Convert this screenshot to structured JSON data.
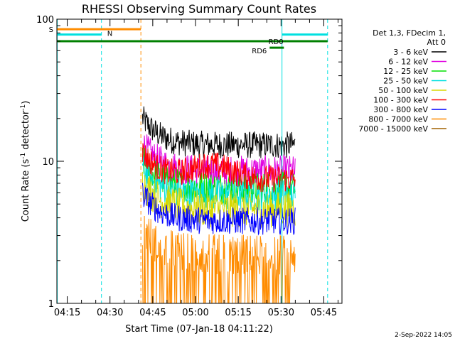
{
  "chart_data": {
    "type": "line",
    "title": "RHESSI Observing Summary Count Rates",
    "xlabel": "Start Time (07-Jan-18 04:11:22)",
    "ylabel": "Count Rate (s",
    "ylabel_sup": "-1",
    "ylabel_tail": " detector",
    "ylabel_end": ")",
    "y_scale": "log",
    "ylim": [
      1,
      100
    ],
    "xlim": [
      "04:11:22",
      "05:51:22"
    ],
    "y_ticks": [
      "1",
      "10",
      "100"
    ],
    "x_ticks": [
      "04:15",
      "04:30",
      "04:45",
      "05:00",
      "05:15",
      "05:30",
      "05:45"
    ],
    "legend": {
      "placement": "right",
      "header_line1": "Det 1,3, FDecim 1,",
      "header_line2": "Att 0",
      "entries": [
        {
          "label": "3 - 6 keV",
          "color": "#000000"
        },
        {
          "label": "6 - 12 keV",
          "color": "#e000e0"
        },
        {
          "label": "12 - 25 keV",
          "color": "#00e000"
        },
        {
          "label": "25 - 50 keV",
          "color": "#00e0e0"
        },
        {
          "label": "50 - 100 keV",
          "color": "#d8d800"
        },
        {
          "label": "100 - 300 keV",
          "color": "#ff0000"
        },
        {
          "label": "300 - 800 keV",
          "color": "#0000ff"
        },
        {
          "label": "800 - 7000 keV",
          "color": "#ff8c00"
        },
        {
          "label": "7000 - 15000 keV",
          "color": "#a06000"
        }
      ]
    },
    "series": [
      {
        "name": "3 - 6 keV",
        "color": "#000000",
        "x_start": "04:41:22",
        "x_end": "05:35:00",
        "base": 13,
        "spread": 1.25
      },
      {
        "name": "6 - 12 keV",
        "color": "#e000e0",
        "x_start": "04:41:22",
        "x_end": "05:35:00",
        "base": 8.5,
        "spread": 1.3
      },
      {
        "name": "12 - 25 keV",
        "color": "#00e000",
        "x_start": "04:41:22",
        "x_end": "05:35:00",
        "base": 6.5,
        "spread": 1.3
      },
      {
        "name": "25 - 50 keV",
        "color": "#00e0e0",
        "x_start": "04:41:22",
        "x_end": "05:35:00",
        "base": 5.8,
        "spread": 1.3
      },
      {
        "name": "50 - 100 keV",
        "color": "#d8d800",
        "x_start": "04:41:22",
        "x_end": "05:35:00",
        "base": 4.6,
        "spread": 1.35
      },
      {
        "name": "100 - 300 keV",
        "color": "#ff0000",
        "x_start": "04:41:22",
        "x_end": "05:35:00",
        "base": 7.5,
        "spread": 1.25
      },
      {
        "name": "300 - 800 keV",
        "color": "#0000ff",
        "x_start": "04:41:22",
        "x_end": "05:35:00",
        "base": 3.8,
        "spread": 1.25
      },
      {
        "name": "800 - 7000 keV",
        "color": "#ff8c00",
        "x_start": "04:41:22",
        "x_end": "05:35:00",
        "base": 2.2,
        "spread": 1.4
      }
    ],
    "vertical_lines": [
      {
        "x": "04:11:30",
        "color": "#00e0e0",
        "style": "solid"
      },
      {
        "x": "04:27:00",
        "color": "#00e0e0",
        "style": "dashed"
      },
      {
        "x": "04:40:50",
        "color": "#ff8c00",
        "style": "dashed"
      },
      {
        "x": "05:30:20",
        "color": "#00e0e0",
        "style": "solid"
      },
      {
        "x": "05:46:20",
        "color": "#00e0e0",
        "style": "dashed"
      }
    ],
    "flags": [
      {
        "label": "S",
        "color": "#ff8c00",
        "x_start": "04:11:22",
        "x_end": "04:40:50",
        "y": 85
      },
      {
        "label": "N",
        "color": "#00e0e0",
        "x_start": "04:11:22",
        "x_end": "04:27:00",
        "y": 78
      },
      {
        "label": "",
        "color": "#00e0e0",
        "x_start": "05:30:20",
        "x_end": "05:46:20",
        "y": 78
      },
      {
        "label": "RD0",
        "color": "#008000",
        "x_start": "04:11:22",
        "x_end": "05:46:20",
        "y": 70
      },
      {
        "label": "RD6",
        "color": "#008000",
        "x_start": "05:26:00",
        "x_end": "05:31:00",
        "y": 63
      }
    ]
  },
  "footer": {
    "date": "2-Sep-2022 14:05"
  }
}
